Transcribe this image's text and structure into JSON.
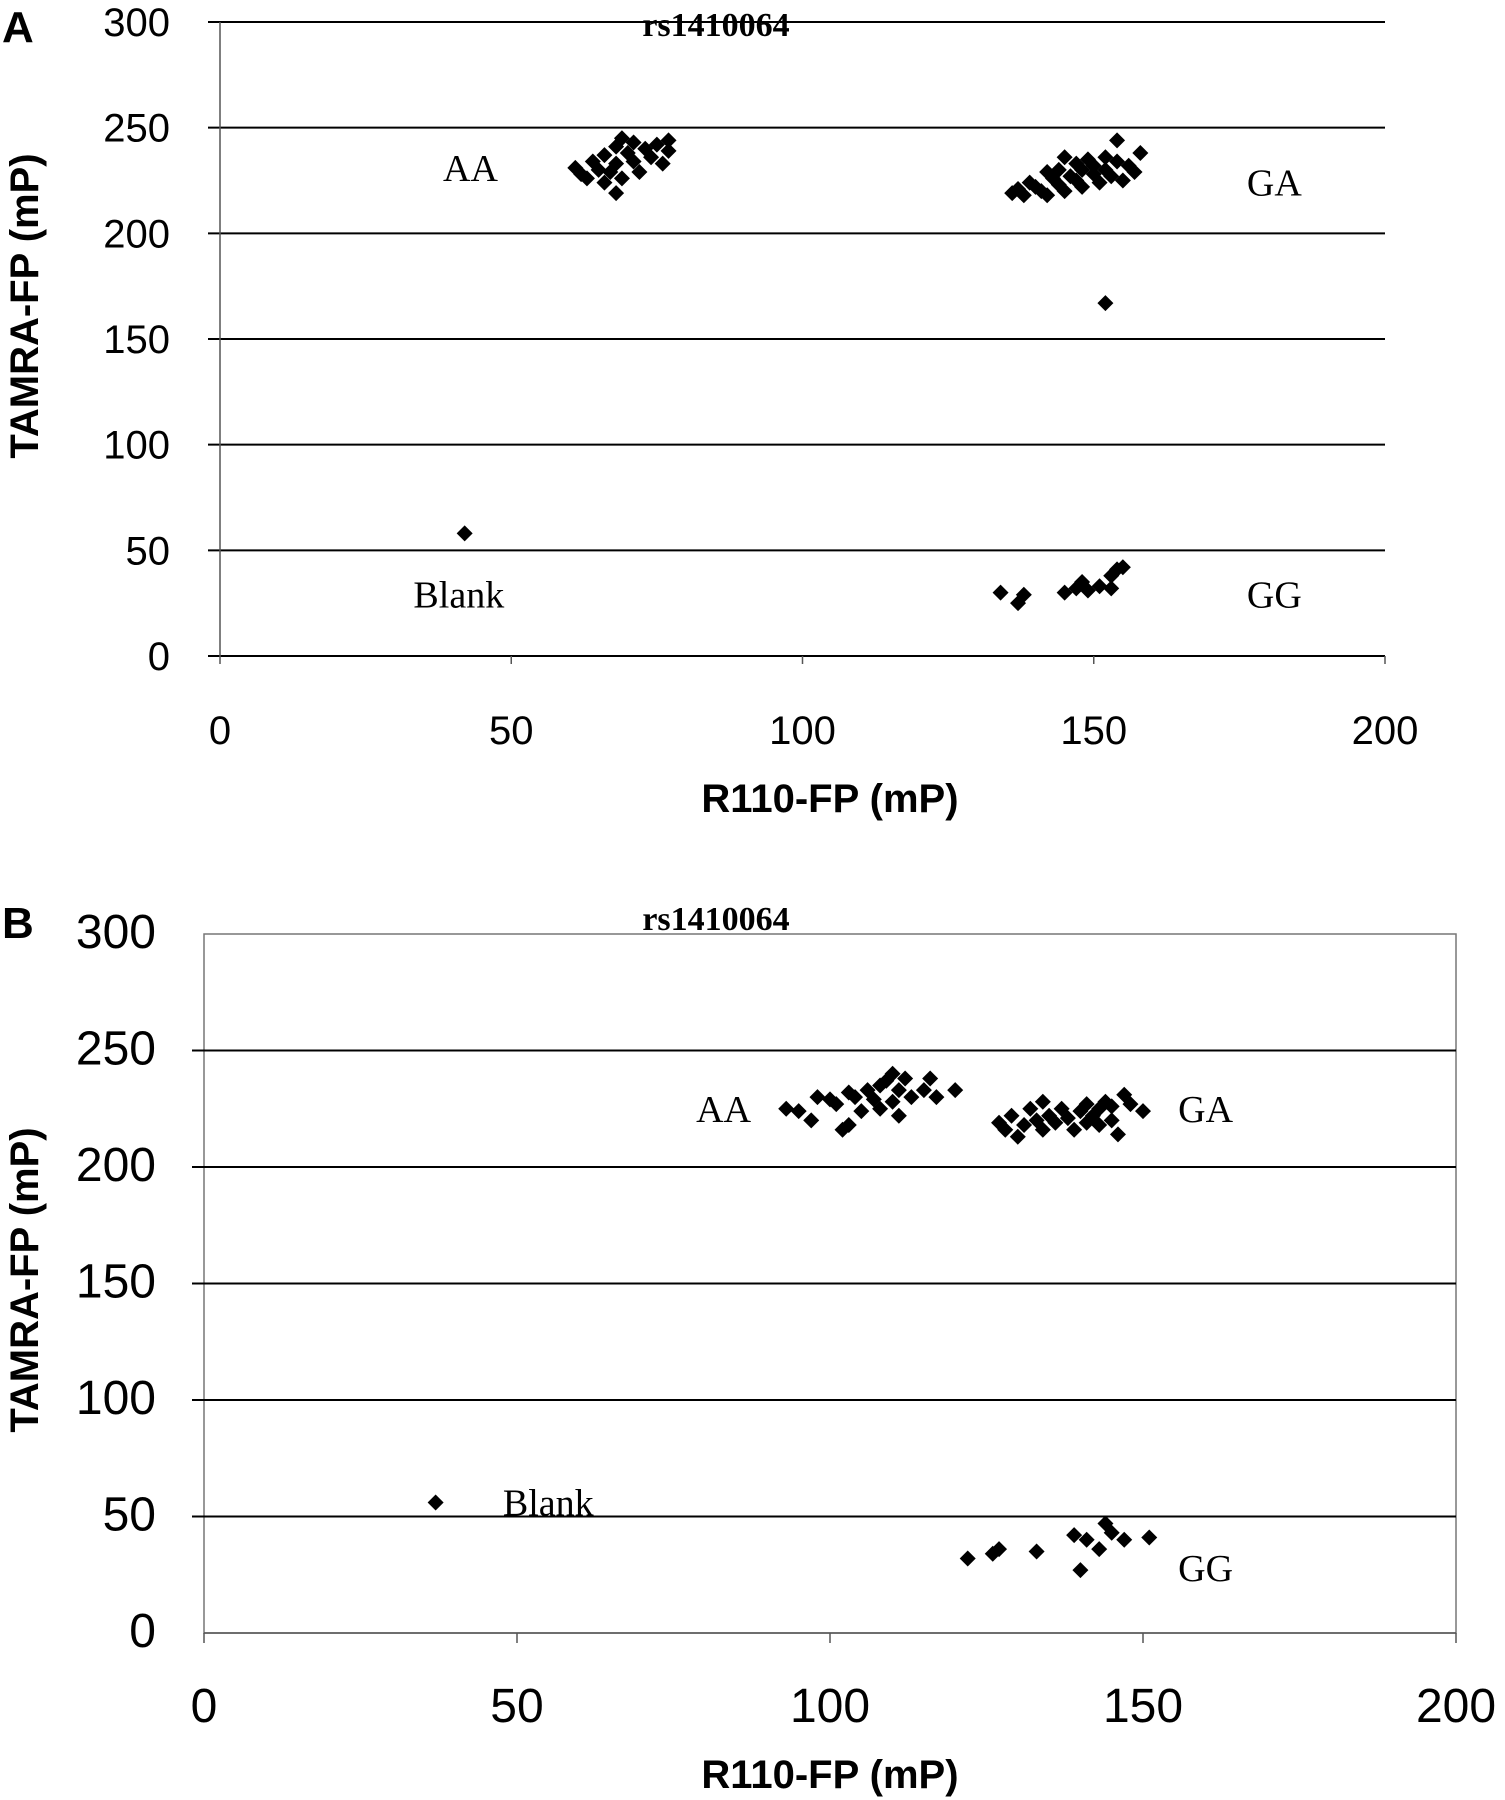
{
  "chart_data": [
    {
      "panel": "A",
      "type": "scatter",
      "title": "rs1410064",
      "xlabel": "R110-FP (mP)",
      "ylabel": "TAMRA-FP (mP)",
      "xlim": [
        0,
        200
      ],
      "ylim": [
        0,
        300
      ],
      "xticks": [
        "0",
        "50",
        "100",
        "150",
        "200"
      ],
      "yticks": [
        "0",
        "50",
        "100",
        "150",
        "200",
        "250",
        "300"
      ],
      "grid": "horizontal",
      "frame": false,
      "marker": "diamond",
      "color": "#000000",
      "annotations": [
        {
          "text": "AA",
          "x": 43,
          "y": 231
        },
        {
          "text": "GA",
          "x": 181,
          "y": 224
        },
        {
          "text": "Blank",
          "x": 41,
          "y": 29
        },
        {
          "text": "GG",
          "x": 181,
          "y": 29
        }
      ],
      "points": [
        {
          "x": 42,
          "y": 58
        },
        {
          "x": 61,
          "y": 231
        },
        {
          "x": 62,
          "y": 228
        },
        {
          "x": 63,
          "y": 226
        },
        {
          "x": 64,
          "y": 234
        },
        {
          "x": 65,
          "y": 230
        },
        {
          "x": 66,
          "y": 237
        },
        {
          "x": 66,
          "y": 224
        },
        {
          "x": 67,
          "y": 229
        },
        {
          "x": 68,
          "y": 241
        },
        {
          "x": 68,
          "y": 233
        },
        {
          "x": 68,
          "y": 219
        },
        {
          "x": 69,
          "y": 245
        },
        {
          "x": 69,
          "y": 226
        },
        {
          "x": 70,
          "y": 238
        },
        {
          "x": 71,
          "y": 234
        },
        {
          "x": 71,
          "y": 243
        },
        {
          "x": 72,
          "y": 229
        },
        {
          "x": 73,
          "y": 240
        },
        {
          "x": 74,
          "y": 236
        },
        {
          "x": 75,
          "y": 242
        },
        {
          "x": 76,
          "y": 233
        },
        {
          "x": 77,
          "y": 244
        },
        {
          "x": 77,
          "y": 239
        },
        {
          "x": 136,
          "y": 219
        },
        {
          "x": 137,
          "y": 221
        },
        {
          "x": 138,
          "y": 218
        },
        {
          "x": 139,
          "y": 224
        },
        {
          "x": 140,
          "y": 222
        },
        {
          "x": 141,
          "y": 220
        },
        {
          "x": 142,
          "y": 229
        },
        {
          "x": 142,
          "y": 218
        },
        {
          "x": 143,
          "y": 226
        },
        {
          "x": 144,
          "y": 223
        },
        {
          "x": 144,
          "y": 230
        },
        {
          "x": 145,
          "y": 220
        },
        {
          "x": 145,
          "y": 236
        },
        {
          "x": 146,
          "y": 227
        },
        {
          "x": 147,
          "y": 225
        },
        {
          "x": 147,
          "y": 233
        },
        {
          "x": 148,
          "y": 222
        },
        {
          "x": 148,
          "y": 230
        },
        {
          "x": 149,
          "y": 235
        },
        {
          "x": 150,
          "y": 228
        },
        {
          "x": 150,
          "y": 232
        },
        {
          "x": 151,
          "y": 224
        },
        {
          "x": 152,
          "y": 236
        },
        {
          "x": 152,
          "y": 230
        },
        {
          "x": 153,
          "y": 227
        },
        {
          "x": 154,
          "y": 234
        },
        {
          "x": 154,
          "y": 244
        },
        {
          "x": 155,
          "y": 225
        },
        {
          "x": 156,
          "y": 232
        },
        {
          "x": 157,
          "y": 229
        },
        {
          "x": 158,
          "y": 238
        },
        {
          "x": 152,
          "y": 167
        },
        {
          "x": 134,
          "y": 30
        },
        {
          "x": 137,
          "y": 25
        },
        {
          "x": 138,
          "y": 29
        },
        {
          "x": 145,
          "y": 30
        },
        {
          "x": 147,
          "y": 32
        },
        {
          "x": 148,
          "y": 35
        },
        {
          "x": 149,
          "y": 31
        },
        {
          "x": 151,
          "y": 33
        },
        {
          "x": 153,
          "y": 38
        },
        {
          "x": 153,
          "y": 32
        },
        {
          "x": 154,
          "y": 41
        },
        {
          "x": 155,
          "y": 42
        }
      ]
    },
    {
      "panel": "B",
      "type": "scatter",
      "title": "rs1410064",
      "xlabel": "R110-FP (mP)",
      "ylabel": "TAMRA-FP (mP)",
      "xlim": [
        0,
        200
      ],
      "ylim": [
        0,
        300
      ],
      "xticks": [
        "0",
        "50",
        "100",
        "150",
        "200"
      ],
      "yticks": [
        "0",
        "50",
        "100",
        "150",
        "200",
        "250",
        "300"
      ],
      "grid": "horizontal",
      "frame": true,
      "marker": "diamond",
      "color": "#000000",
      "annotations": [
        {
          "text": "AA",
          "x": 83,
          "y": 225
        },
        {
          "text": "GA",
          "x": 160,
          "y": 225
        },
        {
          "text": "Blank",
          "x": 55,
          "y": 56
        },
        {
          "text": "GG",
          "x": 160,
          "y": 28
        }
      ],
      "points": [
        {
          "x": 37,
          "y": 56
        },
        {
          "x": 93,
          "y": 225
        },
        {
          "x": 95,
          "y": 224
        },
        {
          "x": 97,
          "y": 220
        },
        {
          "x": 98,
          "y": 230
        },
        {
          "x": 100,
          "y": 229
        },
        {
          "x": 101,
          "y": 227
        },
        {
          "x": 102,
          "y": 216
        },
        {
          "x": 103,
          "y": 232
        },
        {
          "x": 103,
          "y": 218
        },
        {
          "x": 104,
          "y": 230
        },
        {
          "x": 105,
          "y": 224
        },
        {
          "x": 106,
          "y": 233
        },
        {
          "x": 107,
          "y": 229
        },
        {
          "x": 108,
          "y": 235
        },
        {
          "x": 108,
          "y": 225
        },
        {
          "x": 109,
          "y": 237
        },
        {
          "x": 110,
          "y": 240
        },
        {
          "x": 110,
          "y": 228
        },
        {
          "x": 111,
          "y": 233
        },
        {
          "x": 111,
          "y": 222
        },
        {
          "x": 112,
          "y": 238
        },
        {
          "x": 113,
          "y": 230
        },
        {
          "x": 115,
          "y": 233
        },
        {
          "x": 116,
          "y": 238
        },
        {
          "x": 117,
          "y": 230
        },
        {
          "x": 120,
          "y": 233
        },
        {
          "x": 127,
          "y": 219
        },
        {
          "x": 128,
          "y": 216
        },
        {
          "x": 129,
          "y": 222
        },
        {
          "x": 130,
          "y": 213
        },
        {
          "x": 131,
          "y": 218
        },
        {
          "x": 132,
          "y": 225
        },
        {
          "x": 133,
          "y": 220
        },
        {
          "x": 134,
          "y": 216
        },
        {
          "x": 134,
          "y": 228
        },
        {
          "x": 135,
          "y": 222
        },
        {
          "x": 136,
          "y": 219
        },
        {
          "x": 137,
          "y": 225
        },
        {
          "x": 138,
          "y": 221
        },
        {
          "x": 139,
          "y": 216
        },
        {
          "x": 140,
          "y": 224
        },
        {
          "x": 141,
          "y": 219
        },
        {
          "x": 141,
          "y": 227
        },
        {
          "x": 142,
          "y": 222
        },
        {
          "x": 143,
          "y": 218
        },
        {
          "x": 143,
          "y": 225
        },
        {
          "x": 144,
          "y": 228
        },
        {
          "x": 145,
          "y": 220
        },
        {
          "x": 145,
          "y": 226
        },
        {
          "x": 146,
          "y": 214
        },
        {
          "x": 147,
          "y": 231
        },
        {
          "x": 148,
          "y": 227
        },
        {
          "x": 150,
          "y": 224
        },
        {
          "x": 122,
          "y": 32
        },
        {
          "x": 126,
          "y": 34
        },
        {
          "x": 127,
          "y": 36
        },
        {
          "x": 133,
          "y": 35
        },
        {
          "x": 139,
          "y": 42
        },
        {
          "x": 140,
          "y": 27
        },
        {
          "x": 141,
          "y": 40
        },
        {
          "x": 143,
          "y": 36
        },
        {
          "x": 144,
          "y": 47
        },
        {
          "x": 145,
          "y": 43
        },
        {
          "x": 147,
          "y": 40
        },
        {
          "x": 151,
          "y": 41
        }
      ]
    }
  ]
}
